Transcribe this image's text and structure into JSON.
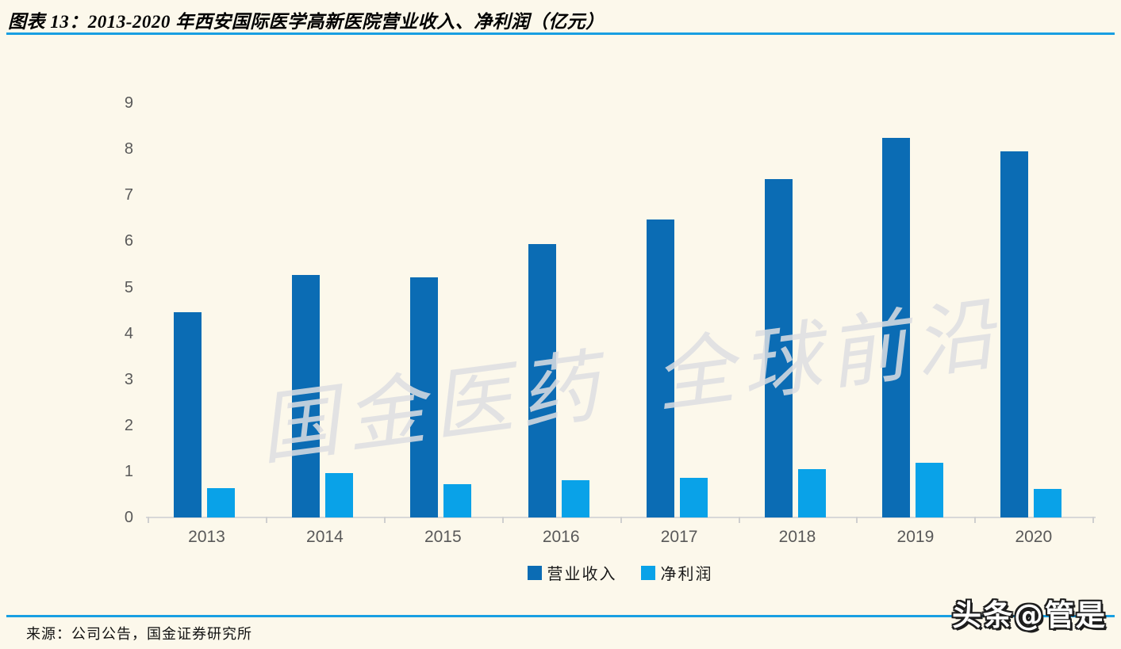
{
  "header": {
    "title": "图表 13：2013-2020 年西安国际医学高新医院营业收入、净利润（亿元）"
  },
  "chart_data": {
    "type": "bar",
    "title": "2013-2020 年西安国际医学高新医院营业收入、净利润（亿元）",
    "categories": [
      "2013",
      "2014",
      "2015",
      "2016",
      "2017",
      "2018",
      "2019",
      "2020"
    ],
    "series": [
      {
        "name": "营业收入",
        "color": "#0B6CB4",
        "values": [
          4.45,
          5.26,
          5.21,
          5.94,
          6.47,
          7.35,
          8.24,
          7.96
        ]
      },
      {
        "name": "净利润",
        "color": "#09A2E8",
        "values": [
          0.64,
          0.96,
          0.72,
          0.81,
          0.86,
          1.05,
          1.19,
          0.62
        ]
      }
    ],
    "xlabel": "",
    "ylabel": "",
    "ylim": [
      0,
      9
    ],
    "ytick_step": 1,
    "grid": false,
    "legend_position": "bottom"
  },
  "watermarks": {
    "diagonal": "国金医药 全球前沿",
    "badge": "头条@管是"
  },
  "footer": {
    "source": "来源：公司公告，国金证券研究所"
  },
  "colors": {
    "background": "#FCF8EB",
    "revenue_bar": "#0B6CB4",
    "profit_bar": "#09A2E8",
    "accent_rule": "#189FE2",
    "axis_text": "#595959",
    "axis_line": "#D8D8D8"
  }
}
